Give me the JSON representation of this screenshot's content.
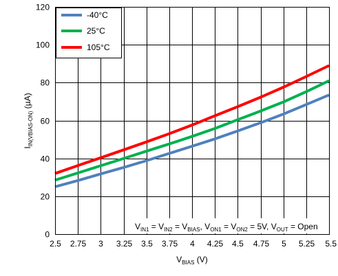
{
  "chart_data": {
    "type": "line",
    "xlabel_main": "V",
    "xlabel_sub": "BIAS",
    "xlabel_unit": " (V)",
    "ylabel_main": "I",
    "ylabel_sub": "IN(VBIAS-ON)",
    "ylabel_unit": " (µA)",
    "xlim": [
      2.5,
      5.5
    ],
    "ylim": [
      0,
      120
    ],
    "xticks": [
      "2.5",
      "2.75",
      "3",
      "3.25",
      "3.5",
      "3.75",
      "4",
      "4.25",
      "4.5",
      "4.75",
      "5",
      "5.25",
      "5.5"
    ],
    "yticks": [
      "0",
      "20",
      "40",
      "60",
      "80",
      "100",
      "120"
    ],
    "grid": true,
    "legend_position": "top-left",
    "series": [
      {
        "name": "-40°C",
        "color": "#4f81bd",
        "x": [
          2.5,
          2.75,
          3,
          3.25,
          3.5,
          3.75,
          4,
          4.25,
          4.5,
          4.75,
          5,
          5.25,
          5.5
        ],
        "y": [
          25,
          28.3,
          31.8,
          35.2,
          38.8,
          42.6,
          46.4,
          50.3,
          54.5,
          58.8,
          63.4,
          68.4,
          73.5
        ]
      },
      {
        "name": "25°C",
        "color": "#00b050",
        "x": [
          2.5,
          2.75,
          3,
          3.25,
          3.5,
          3.75,
          4,
          4.25,
          4.5,
          4.75,
          5,
          5.25,
          5.5
        ],
        "y": [
          28.5,
          32.3,
          36.1,
          39.9,
          43.8,
          47.6,
          51.6,
          55.8,
          60.4,
          65,
          69.8,
          75.2,
          81
        ]
      },
      {
        "name": "105°C",
        "color": "#ff0000",
        "x": [
          2.5,
          2.75,
          3,
          3.25,
          3.5,
          3.75,
          4,
          4.25,
          4.5,
          4.75,
          5,
          5.25,
          5.5
        ],
        "y": [
          32,
          36.2,
          40.3,
          44.5,
          48.7,
          53,
          57.6,
          62.5,
          67.3,
          72.3,
          77.6,
          83.2,
          89
        ]
      }
    ]
  },
  "annotation": {
    "parts": [
      {
        "t": "V",
        "sub": false
      },
      {
        "t": "IN1",
        "sub": true
      },
      {
        "t": " = V",
        "sub": false
      },
      {
        "t": "IN2",
        "sub": true
      },
      {
        "t": " = V",
        "sub": false
      },
      {
        "t": "BIAS",
        "sub": true
      },
      {
        "t": ", V",
        "sub": false
      },
      {
        "t": "ON1",
        "sub": true
      },
      {
        "t": " = V",
        "sub": false
      },
      {
        "t": "ON2",
        "sub": true
      },
      {
        "t": " = 5V, V",
        "sub": false
      },
      {
        "t": "OUT",
        "sub": true
      },
      {
        "t": " = Open",
        "sub": false
      }
    ]
  }
}
